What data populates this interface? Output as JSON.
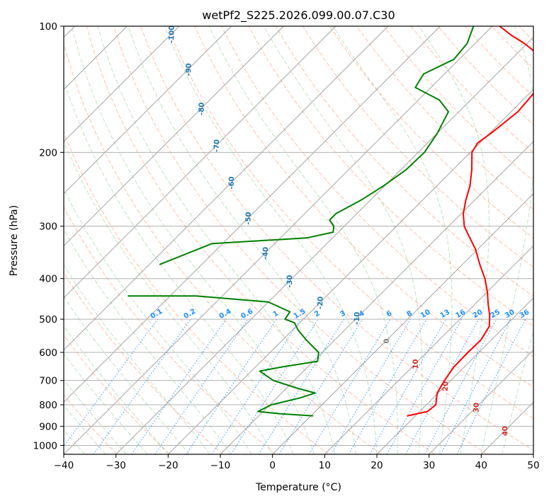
{
  "chart_data": {
    "type": "line",
    "subtype": "skew-T log-P diagram",
    "title": "wetPf2_S225.2026.099.00.07.C30",
    "xlabel": "Temperature (°C)",
    "ylabel": "Pressure (hPa)",
    "xlim": [
      -40,
      50
    ],
    "ylim": [
      1050,
      100
    ],
    "y_scale": "log",
    "x_ticks": [
      "−40",
      "−30",
      "−20",
      "−10",
      "0",
      "10",
      "20",
      "30",
      "40",
      "50"
    ],
    "y_ticks": [
      "100",
      "200",
      "300",
      "400",
      "500",
      "600",
      "700",
      "800",
      "900",
      "1000"
    ],
    "grid": true,
    "series": [
      {
        "color": "#ff0000",
        "points": [
          [
            18.5,
            850
          ],
          [
            21.5,
            830
          ],
          [
            21.8,
            800
          ],
          [
            19.8,
            750
          ],
          [
            18.8,
            700
          ],
          [
            18.0,
            650
          ],
          [
            17.9,
            600
          ],
          [
            18.0,
            560
          ],
          [
            17.0,
            520
          ],
          [
            15.0,
            490
          ],
          [
            12.5,
            460
          ],
          [
            10.0,
            430
          ],
          [
            7.0,
            400
          ],
          [
            3.3,
            370
          ],
          [
            -0.5,
            340
          ],
          [
            -4.5,
            315
          ],
          [
            -7.0,
            300
          ],
          [
            -9.6,
            280
          ],
          [
            -11.7,
            260
          ],
          [
            -13.7,
            240
          ],
          [
            -16.4,
            220
          ],
          [
            -19.7,
            200
          ],
          [
            -20.4,
            190
          ],
          [
            -19.7,
            180
          ],
          [
            -19.2,
            170
          ],
          [
            -18.7,
            160
          ],
          [
            -19.0,
            150
          ],
          [
            -19.4,
            140
          ],
          [
            -21.5,
            130
          ],
          [
            -24.0,
            120
          ],
          [
            -27.0,
            115
          ],
          [
            -30.5,
            110
          ],
          [
            -34.7,
            105
          ],
          [
            -38.6,
            100
          ]
        ]
      },
      {
        "color": "#008000",
        "points": [
          [
            0.3,
            850
          ],
          [
            -6.5,
            840
          ],
          [
            -11.0,
            830
          ],
          [
            -9.7,
            800
          ],
          [
            -5.5,
            770
          ],
          [
            -3.6,
            750
          ],
          [
            -8.0,
            730
          ],
          [
            -14.0,
            700
          ],
          [
            -18.4,
            665
          ],
          [
            -15.0,
            650
          ],
          [
            -9.2,
            630
          ],
          [
            -10.7,
            600
          ],
          [
            -15.5,
            560
          ],
          [
            -19.0,
            530
          ],
          [
            -21.0,
            510
          ],
          [
            -23.5,
            500
          ],
          [
            -24.0,
            480
          ],
          [
            -30.0,
            455
          ],
          [
            -45.0,
            440
          ],
          [
            -58.0,
            440
          ]
        ]
      },
      {
        "color": "#008000",
        "points": [
          [
            -58.0,
            370
          ],
          [
            -52.0,
            330
          ],
          [
            -35.0,
            320
          ],
          [
            -31.0,
            310
          ],
          [
            -32.0,
            300
          ],
          [
            -34.0,
            290
          ],
          [
            -34.0,
            280
          ],
          [
            -31.8,
            260
          ],
          [
            -30.2,
            240
          ],
          [
            -29.0,
            220
          ],
          [
            -28.8,
            200
          ],
          [
            -30.0,
            180
          ],
          [
            -32.0,
            160
          ],
          [
            -36.0,
            150
          ],
          [
            -43.0,
            140
          ],
          [
            -44.0,
            130
          ],
          [
            -41.0,
            120
          ],
          [
            -41.5,
            110
          ],
          [
            -43.6,
            100
          ]
        ]
      }
    ],
    "dry_adiabat_color": "#ff7f50",
    "moist_adiabat_color": "#2ca02c",
    "mixing_ratio_color": "#1e90ff",
    "isotherm_labels": [
      "-100",
      "-90",
      "-80",
      "-70",
      "-60",
      "-50",
      "-40",
      "-30",
      "-20",
      "-10",
      "0",
      "10",
      "20",
      "30",
      "40"
    ],
    "isotherm_label_colors": {
      "negative": "#1f77b4",
      "zero": "#808080",
      "positive": "#d62728"
    },
    "mixing_ratio_labels": [
      "0.1",
      "0.2",
      "0.4",
      "0.6",
      "1",
      "1.5",
      "2",
      "3",
      "4",
      "6",
      "8",
      "10",
      "13",
      "16",
      "20",
      "25",
      "30",
      "36"
    ],
    "mixing_ratio_values": [
      0.1,
      0.2,
      0.4,
      0.6,
      1,
      1.5,
      2,
      3,
      4,
      6,
      8,
      10,
      13,
      16,
      20,
      25,
      30,
      36
    ]
  }
}
